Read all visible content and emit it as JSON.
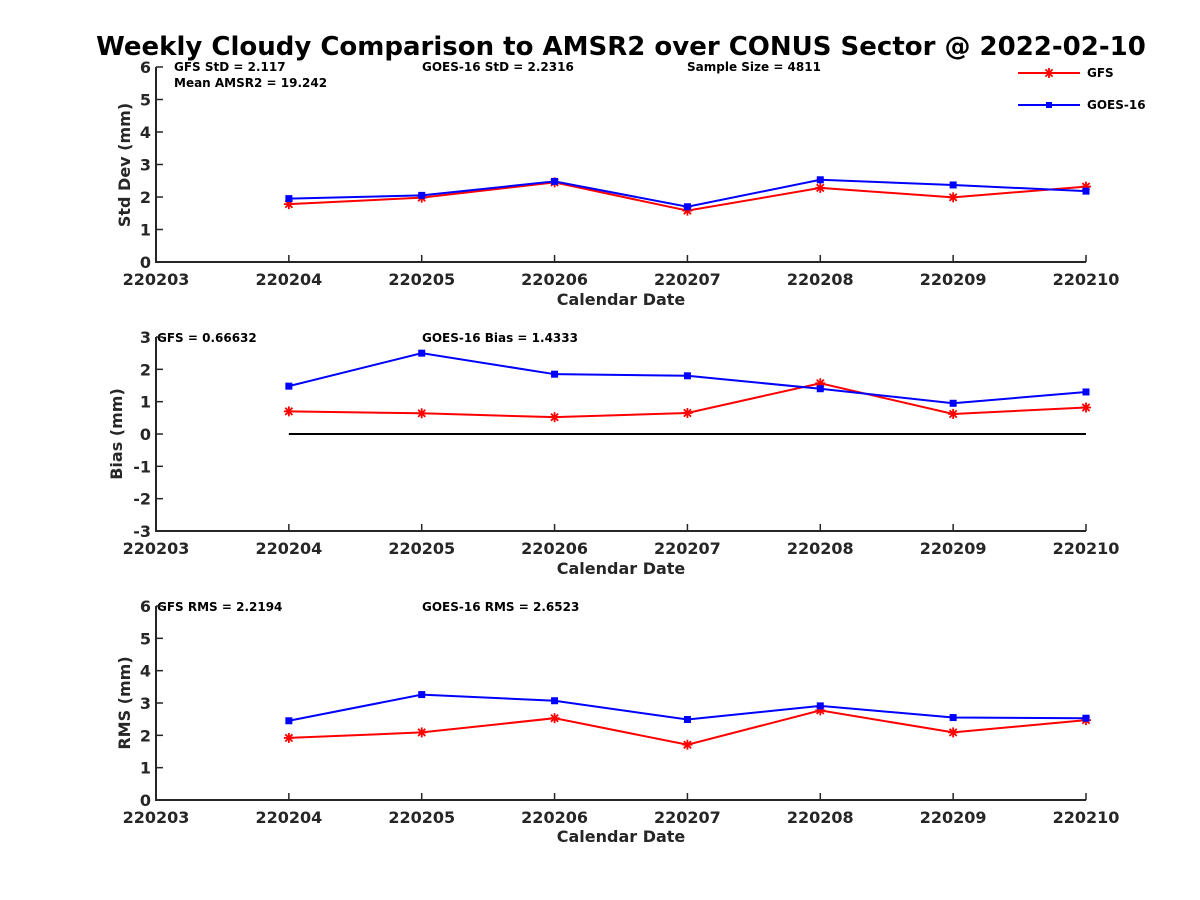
{
  "title": "Weekly Cloudy Comparison to AMSR2 over CONUS Sector @ 2022-02-10",
  "colors": {
    "gfs": "#ff0000",
    "goes": "#0000ff",
    "axis": "#262626",
    "zero": "#000000"
  },
  "legend": {
    "placement": "top-right",
    "gfs_label": "GFS",
    "goes_label": "GOES-16"
  },
  "chart_data": [
    {
      "type": "line",
      "name": "std",
      "xlabel": "Calendar Date",
      "ylabel": "Std Dev (mm)",
      "ylim": [
        0,
        6
      ],
      "yticks": [
        "0",
        "1",
        "2",
        "3",
        "4",
        "5",
        "6"
      ],
      "xticks": [
        "220203",
        "220204",
        "220205",
        "220206",
        "220207",
        "220208",
        "220209",
        "220210"
      ],
      "annotations": {
        "a1": "GFS StD = 2.117",
        "a2": "GOES-16 StD = 2.2316",
        "a3": "Sample Size = 4811",
        "a4": "Mean AMSR2 = 19.242"
      },
      "series": [
        {
          "name": "GFS",
          "marker": "star",
          "color": "#ff0000",
          "values": [
            1.78,
            1.98,
            2.45,
            1.58,
            2.28,
            1.99,
            2.32
          ]
        },
        {
          "name": "GOES-16",
          "marker": "square",
          "color": "#0000ff",
          "values": [
            1.95,
            2.05,
            2.48,
            1.7,
            2.53,
            2.37,
            2.18
          ]
        }
      ]
    },
    {
      "type": "line",
      "name": "bias",
      "xlabel": "Calendar Date",
      "ylabel": "Bias (mm)",
      "ylim": [
        -3,
        3
      ],
      "yticks": [
        "-3",
        "-2",
        "-1",
        "0",
        "1",
        "2",
        "3"
      ],
      "xticks": [
        "220203",
        "220204",
        "220205",
        "220206",
        "220207",
        "220208",
        "220209",
        "220210"
      ],
      "zero_line": true,
      "annotations": {
        "a1": "GFS = 0.66632",
        "a2": "GOES-16 Bias  = 1.4333"
      },
      "series": [
        {
          "name": "GFS",
          "marker": "star",
          "color": "#ff0000",
          "values": [
            0.7,
            0.64,
            0.52,
            0.65,
            1.57,
            0.62,
            0.82
          ]
        },
        {
          "name": "GOES-16",
          "marker": "square",
          "color": "#0000ff",
          "values": [
            1.48,
            2.5,
            1.85,
            1.8,
            1.4,
            0.95,
            1.3
          ]
        }
      ]
    },
    {
      "type": "line",
      "name": "rms",
      "xlabel": "Calendar Date",
      "ylabel": "RMS (mm)",
      "ylim": [
        0,
        6
      ],
      "yticks": [
        "0",
        "1",
        "2",
        "3",
        "4",
        "5",
        "6"
      ],
      "xticks": [
        "220203",
        "220204",
        "220205",
        "220206",
        "220207",
        "220208",
        "220209",
        "220210"
      ],
      "annotations": {
        "a1": "GFS RMS = 2.2194",
        "a2": "GOES-16 RMS = 2.6523"
      },
      "series": [
        {
          "name": "GFS",
          "marker": "star",
          "color": "#ff0000",
          "values": [
            1.92,
            2.09,
            2.53,
            1.71,
            2.77,
            2.09,
            2.47
          ]
        },
        {
          "name": "GOES-16",
          "marker": "square",
          "color": "#0000ff",
          "values": [
            2.45,
            3.26,
            3.07,
            2.49,
            2.91,
            2.55,
            2.53
          ]
        }
      ]
    }
  ]
}
